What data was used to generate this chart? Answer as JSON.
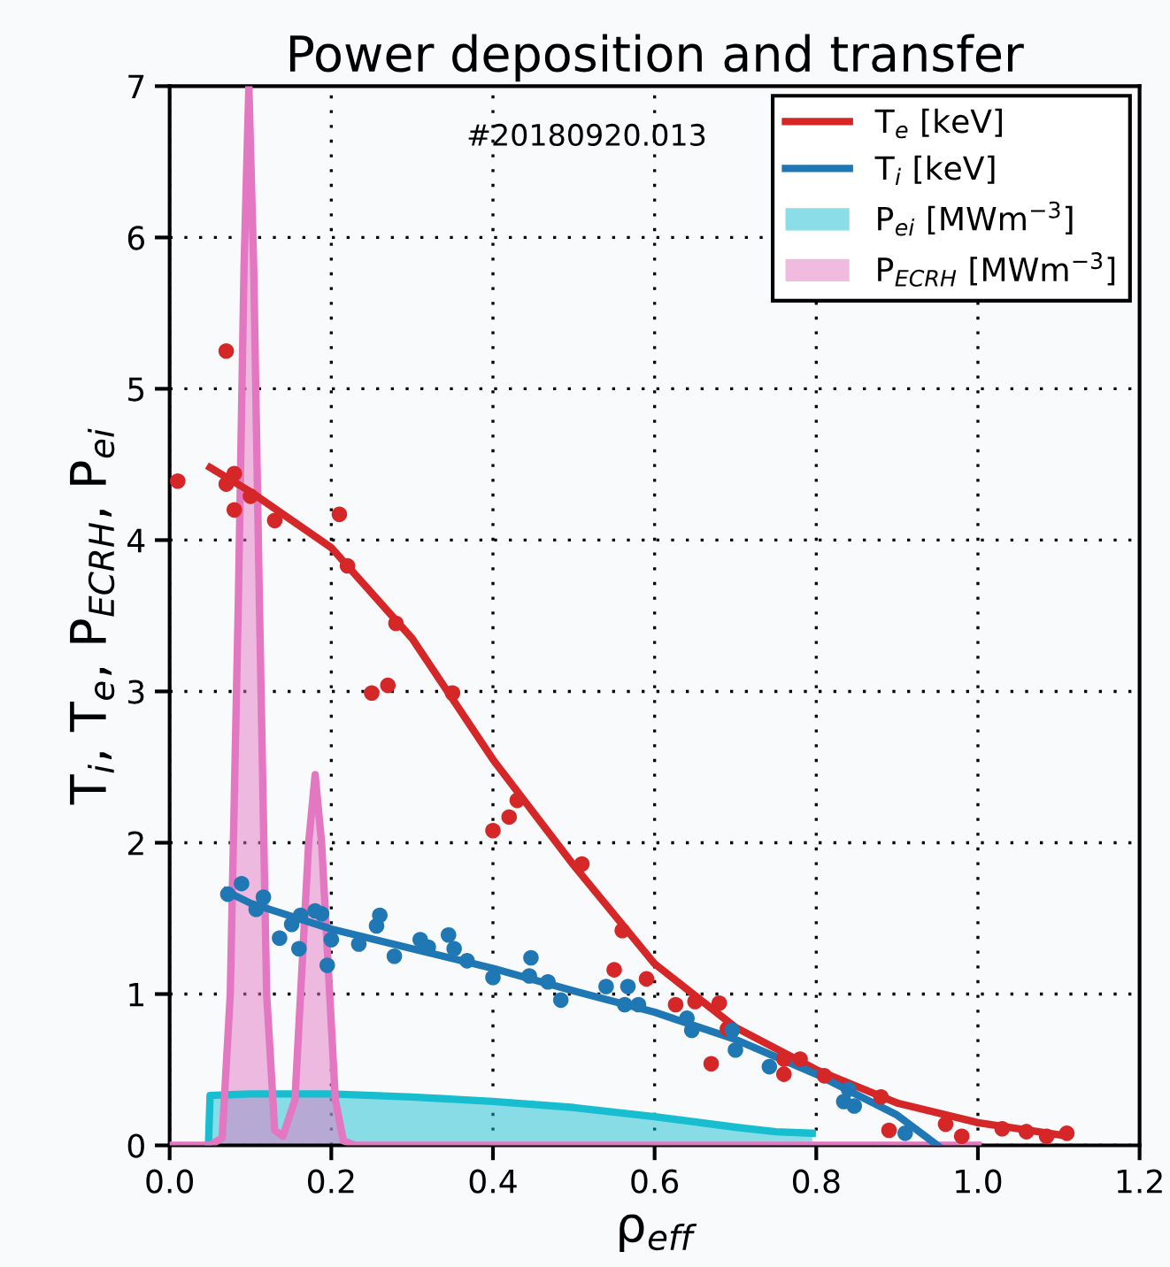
{
  "chart_data": {
    "type": "line",
    "title": "Power deposition and transfer",
    "xlabel": "ρ$_{eff}$",
    "ylabel": "T$_{i}$, T$_{e}$, P$_{ECRH}$, P$_{ei}$",
    "annotations": [
      "#20180920.013"
    ],
    "xlim": [
      0,
      1.2
    ],
    "ylim": [
      0,
      7
    ],
    "xticks": [
      {
        "value": 0,
        "label": "0.0"
      },
      {
        "value": 0.2,
        "label": "0.2"
      },
      {
        "value": 0.4,
        "label": "0.4"
      },
      {
        "value": 0.6,
        "label": "0.6"
      },
      {
        "value": 0.8,
        "label": "0.8"
      },
      {
        "value": 1.0,
        "label": "1.0"
      },
      {
        "value": 1.2,
        "label": "1.2"
      }
    ],
    "yticks": [
      0,
      1,
      2,
      3,
      4,
      5,
      6,
      7
    ],
    "grid": true,
    "legend": "top right",
    "series": [
      {
        "name": "T$_{e}$ [keV]",
        "color": "#d62728",
        "x": [
          0.05,
          0.1,
          0.2,
          0.3,
          0.4,
          0.5,
          0.6,
          0.7,
          0.8,
          0.9,
          1.0,
          1.1
        ],
        "values": [
          4.48,
          4.32,
          3.95,
          3.35,
          2.55,
          1.85,
          1.2,
          0.78,
          0.5,
          0.28,
          0.15,
          0.07
        ]
      },
      {
        "name": "T$_{i}$ [keV]",
        "color": "#1f77b4",
        "x": [
          0.07,
          0.1,
          0.2,
          0.3,
          0.4,
          0.5,
          0.6,
          0.7,
          0.8,
          0.9,
          0.95
        ],
        "values": [
          1.68,
          1.6,
          1.43,
          1.3,
          1.17,
          1.02,
          0.88,
          0.7,
          0.47,
          0.2,
          0.0
        ]
      },
      {
        "type": "area",
        "name": "P$_{ei}$ [MWm$^{−3}$]",
        "color": "#17becf",
        "x": [
          0.048,
          0.05,
          0.1,
          0.2,
          0.3,
          0.4,
          0.5,
          0.6,
          0.7,
          0.75,
          0.795
        ],
        "values": [
          0,
          0.33,
          0.34,
          0.34,
          0.32,
          0.29,
          0.25,
          0.19,
          0.12,
          0.09,
          0.08
        ]
      },
      {
        "type": "area",
        "name": "P$_{ECRH}$ [MWm$^{−3}$]",
        "color": "#e377c2",
        "x": [
          0,
          0.05,
          0.065,
          0.075,
          0.085,
          0.092,
          0.098,
          0.104,
          0.111,
          0.12,
          0.13,
          0.14,
          0.155,
          0.165,
          0.172,
          0.18,
          0.188,
          0.195,
          0.205,
          0.215,
          0.23,
          1.0
        ],
        "values": [
          0,
          0,
          0.05,
          1.0,
          3.6,
          5.8,
          7.0,
          5.8,
          3.6,
          1.0,
          0.1,
          0.06,
          0.3,
          1.3,
          2.0,
          2.45,
          2.0,
          1.3,
          0.3,
          0.03,
          0,
          0
        ]
      },
      {
        "type": "scatter",
        "marker": "circle",
        "color": "#d62728",
        "x": [
          0.01,
          0.07,
          0.07,
          0.08,
          0.08,
          0.1,
          0.13,
          0.21,
          0.22,
          0.28,
          0.25,
          0.27,
          0.35,
          0.4,
          0.42,
          0.43,
          0.51,
          0.56,
          0.55,
          0.59,
          0.626,
          0.65,
          0.67,
          0.68,
          0.69,
          0.76,
          0.76,
          0.78,
          0.81,
          0.88,
          0.89,
          0.96,
          0.98,
          1.03,
          1.06,
          1.085,
          1.11
        ],
        "values": [
          4.39,
          5.25,
          4.37,
          4.44,
          4.2,
          4.29,
          4.13,
          4.17,
          3.83,
          3.45,
          2.99,
          3.04,
          2.99,
          2.08,
          2.17,
          2.28,
          1.86,
          1.42,
          1.16,
          1.1,
          0.93,
          0.95,
          0.54,
          0.94,
          0.77,
          0.57,
          0.47,
          0.57,
          0.46,
          0.32,
          0.1,
          0.14,
          0.06,
          0.11,
          0.09,
          0.06,
          0.08
        ]
      },
      {
        "type": "scatter",
        "marker": "circle",
        "color": "#1f77b4",
        "x": [
          0.072,
          0.089,
          0.107,
          0.116,
          0.136,
          0.151,
          0.162,
          0.16,
          0.18,
          0.188,
          0.195,
          0.2,
          0.234,
          0.256,
          0.26,
          0.278,
          0.31,
          0.32,
          0.345,
          0.352,
          0.368,
          0.4,
          0.447,
          0.445,
          0.468,
          0.484,
          0.54,
          0.567,
          0.563,
          0.58,
          0.64,
          0.646,
          0.696,
          0.7,
          0.742,
          0.834,
          0.84,
          0.847,
          0.91
        ],
        "values": [
          1.66,
          1.73,
          1.56,
          1.64,
          1.37,
          1.46,
          1.52,
          1.3,
          1.55,
          1.53,
          1.19,
          1.36,
          1.33,
          1.45,
          1.52,
          1.25,
          1.36,
          1.31,
          1.39,
          1.3,
          1.22,
          1.11,
          1.24,
          1.12,
          1.08,
          0.96,
          1.05,
          1.05,
          0.93,
          0.93,
          0.84,
          0.76,
          0.76,
          0.63,
          0.52,
          0.29,
          0.37,
          0.26,
          0.08
        ]
      }
    ]
  }
}
